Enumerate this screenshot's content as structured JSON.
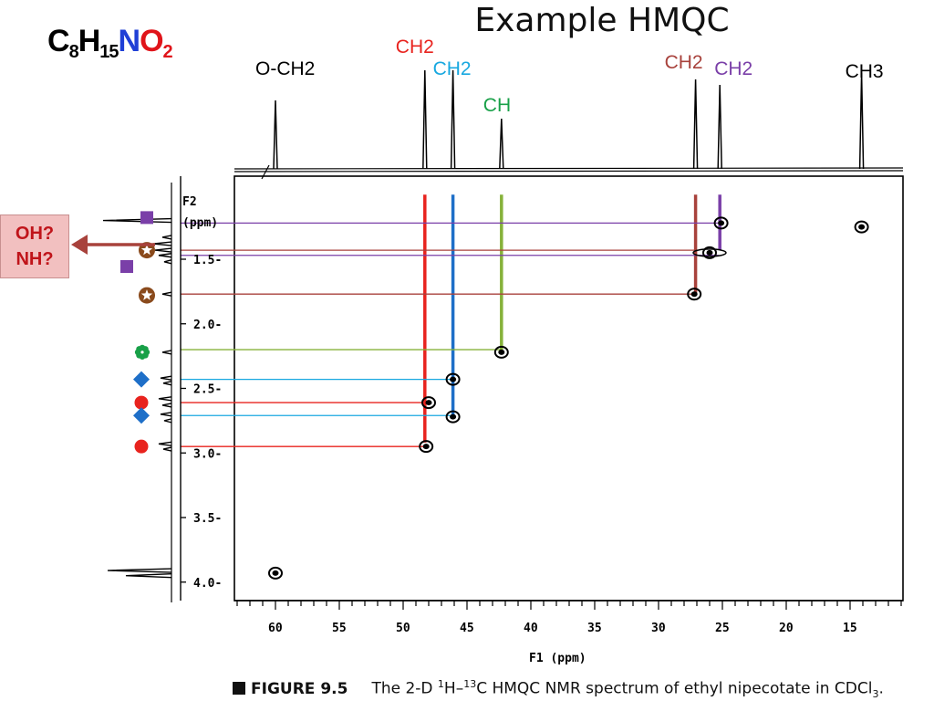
{
  "title": "Example HMQC",
  "formula": {
    "c": "C",
    "c_count": "8",
    "h": "H",
    "h_count": "15",
    "n": "N",
    "o": "O",
    "o_count": "2"
  },
  "annotation_box": {
    "line1": "OH?",
    "line2": "NH?"
  },
  "caption": {
    "figure_label": "FIGURE 9.5",
    "text_pre": "The 2-D ",
    "sup1": "1",
    "text_mid1": "H–",
    "sup2": "13",
    "text_mid2": "C HMQC NMR spectrum of ethyl nipecotate in CDCl",
    "sub": "3",
    "text_end": "."
  },
  "colors": {
    "red": "#e8231e",
    "blue": "#1e6fc8",
    "green": "#86b23a",
    "brown": "#a8423c",
    "purple": "#7a3fa8",
    "cyan": "#18a8e0",
    "dark_green": "#18a048",
    "star_brown": "#8a4a1c",
    "axis": "#000000"
  },
  "chart_data": {
    "type": "scatter",
    "xlabel": "F1 (ppm)",
    "ylabel_line1": "F2",
    "ylabel_line2": "(ppm)",
    "xlim": [
      64,
      11
    ],
    "ylim": [
      1.0,
      4.1
    ],
    "x_ticks": [
      60,
      55,
      50,
      45,
      40,
      35,
      30,
      25,
      20,
      15
    ],
    "x_tick_labels": [
      "60",
      "55",
      "50",
      "45",
      "40",
      "35",
      "30",
      "25",
      "20",
      "15"
    ],
    "y_ticks": [
      1.5,
      2.0,
      2.5,
      3.0,
      3.5,
      4.0
    ],
    "y_tick_labels": [
      "1.5",
      "2.0",
      "2.5",
      "3.0",
      "3.5",
      "4.0"
    ],
    "cross_peaks": [
      {
        "x": 60.0,
        "y": 3.93
      },
      {
        "x": 48.2,
        "y": 2.95
      },
      {
        "x": 48.0,
        "y": 2.61
      },
      {
        "x": 46.1,
        "y": 2.43
      },
      {
        "x": 46.1,
        "y": 2.72
      },
      {
        "x": 42.3,
        "y": 2.22
      },
      {
        "x": 27.2,
        "y": 1.77
      },
      {
        "x": 26.0,
        "y": 1.45
      },
      {
        "x": 25.1,
        "y": 1.22
      },
      {
        "x": 14.1,
        "y": 1.25
      }
    ],
    "carbon_peaks": [
      {
        "x": 60.0,
        "label": "O-CH2",
        "color_key": "black"
      },
      {
        "x": 48.3,
        "label": "CH2",
        "color_key": "red"
      },
      {
        "x": 46.1,
        "label": "CH2",
        "color_key": "cyan"
      },
      {
        "x": 42.3,
        "label": "CH",
        "color_key": "dark_green"
      },
      {
        "x": 27.1,
        "label": "CH2",
        "color_key": "brown"
      },
      {
        "x": 25.2,
        "label": "CH2",
        "color_key": "purple"
      },
      {
        "x": 14.1,
        "label": "CH3",
        "color_key": "black"
      }
    ],
    "vertical_guides": [
      {
        "x": 48.3,
        "y1": 1.0,
        "y2": 2.92,
        "color_key": "red"
      },
      {
        "x": 46.1,
        "y1": 1.0,
        "y2": 2.72,
        "color_key": "blue"
      },
      {
        "x": 42.3,
        "y1": 1.0,
        "y2": 2.2,
        "color_key": "green"
      },
      {
        "x": 27.1,
        "y1": 1.0,
        "y2": 1.77,
        "color_key": "brown"
      },
      {
        "x": 25.2,
        "y1": 1.0,
        "y2": 1.43,
        "color_key": "purple"
      }
    ],
    "horizontal_guides": [
      {
        "y": 1.22,
        "x_to": 25.3,
        "color_key": "purple"
      },
      {
        "y": 1.43,
        "x_to": 27.0,
        "color_key": "brown"
      },
      {
        "y": 1.47,
        "x_to": 25.3,
        "color_key": "purple"
      },
      {
        "y": 1.77,
        "x_to": 27.2,
        "color_key": "brown"
      },
      {
        "y": 2.2,
        "x_to": 42.3,
        "color_key": "green"
      },
      {
        "y": 2.43,
        "x_to": 46.1,
        "color_key": "cyan"
      },
      {
        "y": 2.61,
        "x_to": 48.0,
        "color_key": "red"
      },
      {
        "y": 2.71,
        "x_to": 46.1,
        "color_key": "cyan"
      },
      {
        "y": 2.95,
        "x_to": 48.2,
        "color_key": "red"
      }
    ],
    "proton_markers": [
      {
        "y": 1.22,
        "shape": "square",
        "color_key": "purple",
        "col": 0
      },
      {
        "y": 1.5,
        "shape": "square",
        "color_key": "purple",
        "col": -1
      },
      {
        "y": 1.43,
        "shape": "star",
        "color_key": "star_brown",
        "col": 0
      },
      {
        "y": 1.78,
        "shape": "star",
        "color_key": "star_brown",
        "col": 0
      },
      {
        "y": 2.22,
        "shape": "flower",
        "color_key": "dark_green",
        "col": 0
      },
      {
        "y": 2.43,
        "shape": "diamond",
        "color_key": "blue",
        "col": 0
      },
      {
        "y": 2.61,
        "shape": "circle",
        "color_key": "red",
        "col": 0
      },
      {
        "y": 2.71,
        "shape": "diamond",
        "color_key": "blue",
        "col": 0
      },
      {
        "y": 2.95,
        "shape": "circle",
        "color_key": "red",
        "col": 0
      }
    ]
  }
}
